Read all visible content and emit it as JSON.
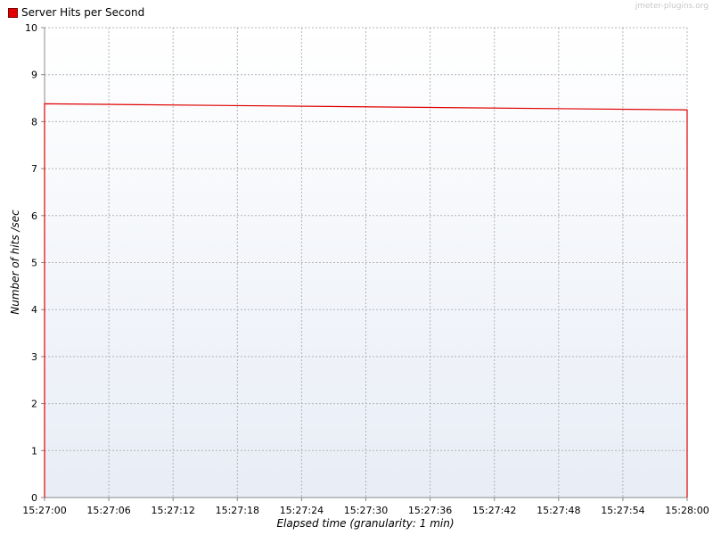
{
  "watermark": "jmeter-plugins.org",
  "chart_data": {
    "type": "line",
    "title": "",
    "xlabel": "Elapsed time (granularity: 1 min)",
    "ylabel": "Number of hits /sec",
    "ylim": [
      0,
      10
    ],
    "yticks": [
      0,
      1,
      2,
      3,
      4,
      5,
      6,
      7,
      8,
      9,
      10
    ],
    "xticks": [
      "15:27:00",
      "15:27:06",
      "15:27:12",
      "15:27:18",
      "15:27:24",
      "15:27:30",
      "15:27:36",
      "15:27:42",
      "15:27:48",
      "15:27:54",
      "15:28:00"
    ],
    "grid": true,
    "legend_position": "top-left",
    "series": [
      {
        "name": "Server Hits per Second",
        "color": "#e00000",
        "x": [
          "15:27:00",
          "15:28:00"
        ],
        "values": [
          8.38,
          8.25
        ]
      }
    ]
  }
}
